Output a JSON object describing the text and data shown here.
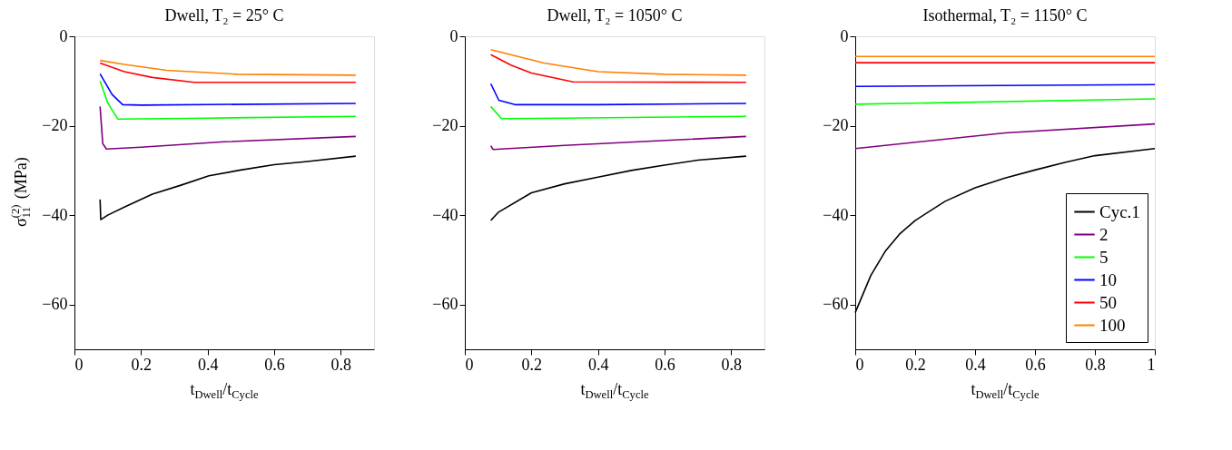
{
  "chart_data": [
    {
      "type": "line",
      "title": "Dwell, T₂ = 25° C",
      "xlabel": "t$_{Dwell}$/t$_{Cycle}$",
      "ylabel": "σ$^{(2)}$$_{11}$ (MPa)",
      "xlim": [
        0,
        0.9
      ],
      "xticks": [
        0,
        0.2,
        0.4,
        0.6,
        0.8
      ],
      "ylim": [
        -70,
        0
      ],
      "yticks": [
        {
          "value": -60,
          "label": "−60"
        },
        {
          "value": -40,
          "label": "−40"
        },
        {
          "value": -20,
          "label": "−20"
        },
        0
      ],
      "grid": false,
      "legend": false,
      "series": [
        {
          "color": "#000000",
          "x": [
            0.077,
            0.079,
            0.1,
            0.15,
            0.234,
            0.32,
            0.404,
            0.5,
            0.6,
            0.7,
            0.845
          ],
          "values": [
            -36.5,
            -41.0,
            -40.0,
            -38.2,
            -35.3,
            -33.3,
            -31.2,
            -29.9,
            -28.7,
            -28.0,
            -26.8
          ]
        },
        {
          "color": "#800080",
          "x": [
            0.077,
            0.085,
            0.096,
            0.2,
            0.45,
            0.845
          ],
          "values": [
            -15.7,
            -24.0,
            -25.2,
            -24.8,
            -23.6,
            -22.4
          ]
        },
        {
          "color": "#00ff00",
          "x": [
            0.077,
            0.1,
            0.13,
            0.4,
            0.845
          ],
          "values": [
            -10.0,
            -14.9,
            -18.5,
            -18.3,
            -17.9
          ]
        },
        {
          "color": "#0000ff",
          "x": [
            0.077,
            0.113,
            0.145,
            0.2,
            0.845
          ],
          "values": [
            -8.4,
            -13.0,
            -15.3,
            -15.4,
            -15.0
          ]
        },
        {
          "color": "#ff0000",
          "x": [
            0.077,
            0.15,
            0.234,
            0.36,
            0.845
          ],
          "values": [
            -6.0,
            -7.9,
            -9.2,
            -10.3,
            -10.3
          ]
        },
        {
          "color": "#ff8000",
          "x": [
            0.077,
            0.15,
            0.277,
            0.49,
            0.845
          ],
          "values": [
            -5.4,
            -6.3,
            -7.6,
            -8.5,
            -8.7
          ]
        }
      ]
    },
    {
      "type": "line",
      "title": "Dwell, T₂ = 1050° C",
      "xlabel": "t$_{Dwell}$/t$_{Cycle}$",
      "xlim": [
        0,
        0.9
      ],
      "xticks": [
        0,
        0.2,
        0.4,
        0.6,
        0.8
      ],
      "ylim": [
        -70,
        0
      ],
      "yticks": [
        {
          "value": -60,
          "label": "−60"
        },
        {
          "value": -40,
          "label": "−40"
        },
        {
          "value": -20,
          "label": "−20"
        },
        0
      ],
      "grid": false,
      "legend": false,
      "series": [
        {
          "color": "#000000",
          "x": [
            0.078,
            0.1,
            0.2,
            0.3,
            0.4,
            0.5,
            0.6,
            0.7,
            0.845
          ],
          "values": [
            -41.2,
            -39.4,
            -35.0,
            -33.0,
            -31.5,
            -30.0,
            -28.8,
            -27.7,
            -26.8
          ]
        },
        {
          "color": "#800080",
          "x": [
            0.078,
            0.085,
            0.3,
            0.845
          ],
          "values": [
            -24.5,
            -25.3,
            -24.4,
            -22.4
          ]
        },
        {
          "color": "#00ff00",
          "x": [
            0.078,
            0.11,
            0.3,
            0.845
          ],
          "values": [
            -15.7,
            -18.4,
            -18.3,
            -17.9
          ]
        },
        {
          "color": "#0000ff",
          "x": [
            0.078,
            0.102,
            0.153,
            0.4,
            0.845
          ],
          "values": [
            -10.6,
            -14.3,
            -15.3,
            -15.3,
            -15.0
          ]
        },
        {
          "color": "#ff0000",
          "x": [
            0.078,
            0.14,
            0.2,
            0.325,
            0.845
          ],
          "values": [
            -4.1,
            -6.5,
            -8.2,
            -10.2,
            -10.3
          ]
        },
        {
          "color": "#ff8000",
          "x": [
            0.078,
            0.238,
            0.4,
            0.6,
            0.845
          ],
          "values": [
            -3.0,
            -6.0,
            -7.9,
            -8.5,
            -8.7
          ]
        }
      ]
    },
    {
      "type": "line",
      "title": "Isothermal, T₂ = 1150° C",
      "xlabel": "t$_{Dwell}$/t$_{Cycle}$",
      "xlim": [
        0,
        1
      ],
      "xticks": [
        0,
        0.2,
        0.4,
        0.6,
        0.8,
        1
      ],
      "ylim": [
        -70,
        0
      ],
      "yticks": [
        {
          "value": -60,
          "label": "−60"
        },
        {
          "value": -40,
          "label": "−40"
        },
        {
          "value": -20,
          "label": "−20"
        },
        0
      ],
      "grid": false,
      "legend": "bottom right",
      "series": [
        {
          "name": "Cyc.1",
          "color": "#000000",
          "x": [
            0,
            0.052,
            0.1,
            0.15,
            0.2,
            0.3,
            0.4,
            0.5,
            0.6,
            0.7,
            0.8,
            1
          ],
          "values": [
            -61.8,
            -53.5,
            -48.1,
            -44.1,
            -41.2,
            -36.9,
            -33.9,
            -31.7,
            -29.9,
            -28.2,
            -26.7,
            -25.1
          ]
        },
        {
          "name": "2",
          "color": "#800080",
          "x": [
            0,
            0.5,
            1
          ],
          "values": [
            -25.1,
            -21.6,
            -19.6
          ]
        },
        {
          "name": "5",
          "color": "#00ff00",
          "x": [
            0,
            1
          ],
          "values": [
            -15.2,
            -14.0
          ]
        },
        {
          "name": "10",
          "color": "#0000ff",
          "x": [
            0,
            1
          ],
          "values": [
            -11.2,
            -10.8
          ]
        },
        {
          "name": "50",
          "color": "#ff0000",
          "x": [
            0,
            1
          ],
          "values": [
            -5.9,
            -5.9
          ]
        },
        {
          "name": "100",
          "color": "#ff8000",
          "x": [
            0,
            1
          ],
          "values": [
            -4.5,
            -4.5
          ]
        }
      ]
    }
  ]
}
